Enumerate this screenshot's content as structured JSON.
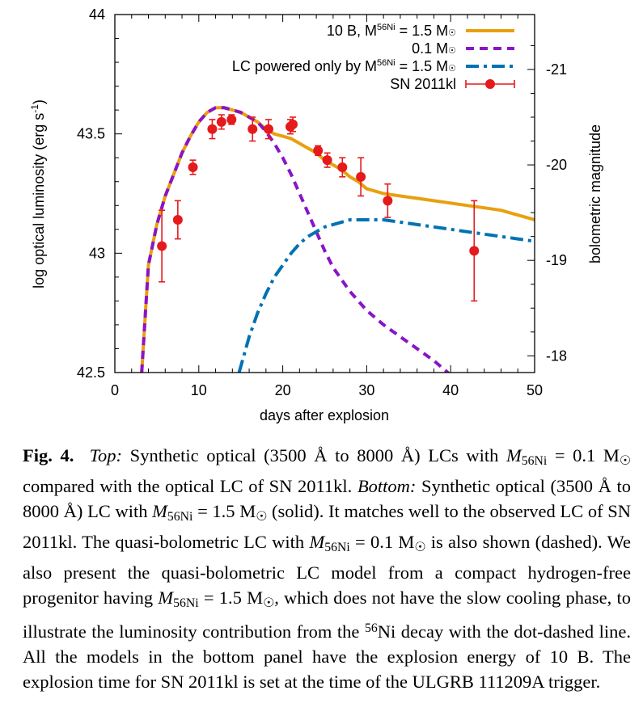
{
  "figure": {
    "chart_data": {
      "type": "line",
      "xlabel": "days after explosion",
      "ylabel": "log optical luminosity (erg s-1)",
      "ylabel_main": "log optical luminosity (erg s",
      "ylabel_sup": "-1",
      "ylabel_close": ")",
      "y2label": "bolometric magnitude",
      "xlim": [
        0,
        50
      ],
      "ylim": [
        42.5,
        44
      ],
      "x_ticks": [
        "0",
        "10",
        "20",
        "30",
        "40",
        "50"
      ],
      "y_ticks": [
        "42.5",
        "43",
        "43.5",
        "44"
      ],
      "y2_ticks": [
        "-18",
        "-19",
        "-20",
        "-21"
      ],
      "y2_tick_values": [
        -18,
        -19,
        -20,
        -21
      ],
      "mag_to_logL": {
        "offset": 35.37,
        "scale": -0.4
      },
      "legend_position": "top-right",
      "series": [
        {
          "name": "10 B, M56Ni = 1.5 M☉",
          "legend_prefix": "10 B, M",
          "legend_sup": "56",
          "legend_sub_text": "Ni",
          "legend_suffix": " = 1.5 M",
          "style": "solid",
          "color": "#e8a00f",
          "x": [
            3.2,
            4,
            5,
            6,
            7,
            8,
            9,
            10,
            11,
            12,
            13,
            14,
            15,
            16,
            17,
            18,
            19,
            20,
            21,
            22,
            23,
            24,
            25,
            26,
            27,
            28,
            29,
            30,
            32,
            34,
            36,
            38,
            40,
            42,
            44,
            46,
            48,
            50
          ],
          "y": [
            42.5,
            42.95,
            43.12,
            43.24,
            43.33,
            43.42,
            43.49,
            43.55,
            43.59,
            43.61,
            43.61,
            43.6,
            43.59,
            43.57,
            43.55,
            43.52,
            43.5,
            43.49,
            43.48,
            43.46,
            43.44,
            43.42,
            43.39,
            43.37,
            43.35,
            43.32,
            43.3,
            43.27,
            43.25,
            43.24,
            43.23,
            43.22,
            43.21,
            43.2,
            43.19,
            43.18,
            43.16,
            43.14
          ]
        },
        {
          "name": "0.1 M☉",
          "legend_prefix": "0.1 M",
          "style": "dashed",
          "color": "#8a14c8",
          "x": [
            3.2,
            4,
            5,
            6,
            7,
            8,
            9,
            10,
            11,
            12,
            13,
            14,
            15,
            16,
            17,
            18,
            19,
            20,
            21,
            22,
            23,
            24,
            25,
            26,
            28,
            30,
            32,
            34,
            36,
            38,
            40
          ],
          "y": [
            42.5,
            42.95,
            43.12,
            43.24,
            43.33,
            43.42,
            43.49,
            43.55,
            43.59,
            43.61,
            43.61,
            43.6,
            43.59,
            43.57,
            43.55,
            43.51,
            43.46,
            43.4,
            43.33,
            43.25,
            43.17,
            43.09,
            43.01,
            42.94,
            42.84,
            42.76,
            42.7,
            42.65,
            42.6,
            42.55,
            42.49
          ]
        },
        {
          "name": "LC powered only by M56Ni = 1.5 M☉",
          "legend_prefix": "LC powered only by M",
          "legend_sup": "56",
          "legend_sub_text": "Ni",
          "legend_suffix": " = 1.5 M",
          "style": "dashdot",
          "color": "#0072b2",
          "x": [
            14.8,
            16,
            17,
            18,
            19,
            20,
            21,
            22,
            23,
            24,
            25,
            26,
            27,
            28,
            30,
            32,
            34,
            36,
            38,
            40,
            42,
            44,
            46,
            48,
            50
          ],
          "y": [
            42.5,
            42.65,
            42.75,
            42.83,
            42.9,
            42.95,
            43.0,
            43.04,
            43.07,
            43.09,
            43.11,
            43.12,
            43.13,
            43.14,
            43.14,
            43.14,
            43.13,
            43.12,
            43.11,
            43.1,
            43.09,
            43.08,
            43.07,
            43.06,
            43.05
          ]
        },
        {
          "name": "SN 2011kl",
          "legend_prefix": "SN 2011kl",
          "style": "points",
          "color": "#e41a1c",
          "points": [
            {
              "x": 5.6,
              "y": 43.03,
              "err": 0.15
            },
            {
              "x": 7.5,
              "y": 43.14,
              "err": 0.08
            },
            {
              "x": 9.3,
              "y": 43.36,
              "err": 0.03
            },
            {
              "x": 11.6,
              "y": 43.52,
              "err": 0.04
            },
            {
              "x": 12.7,
              "y": 43.55,
              "err": 0.03
            },
            {
              "x": 13.9,
              "y": 43.56,
              "err": 0.02
            },
            {
              "x": 16.4,
              "y": 43.52,
              "err": 0.05
            },
            {
              "x": 18.3,
              "y": 43.52,
              "err": 0.04
            },
            {
              "x": 20.9,
              "y": 43.53,
              "err": 0.03
            },
            {
              "x": 21.2,
              "y": 43.54,
              "err": 0.03
            },
            {
              "x": 24.2,
              "y": 43.43,
              "err": 0.02
            },
            {
              "x": 25.3,
              "y": 43.39,
              "err": 0.03
            },
            {
              "x": 27.1,
              "y": 43.36,
              "err": 0.04
            },
            {
              "x": 29.3,
              "y": 43.32,
              "err": 0.08
            },
            {
              "x": 32.5,
              "y": 43.22,
              "err": 0.07
            },
            {
              "x": 42.8,
              "y": 43.01,
              "err": 0.21
            }
          ]
        }
      ]
    }
  },
  "caption": {
    "label": "Fig. 4.",
    "top_word": "Top:",
    "seg1": " Synthetic optical (3500 Å to 8000 Å) LCs with ",
    "m_italic": "M",
    "m_sub": "56Ni",
    "seg2": " = 0.1 M",
    "sun": "☉",
    "seg3": " compared with the optical LC of SN 2011kl. ",
    "bottom_word": "Bottom:",
    "seg4": " Synthetic optical (3500 Å to 8000 Å) LC with ",
    "seg5": " = 1.5 M",
    "seg6": " (solid). It matches well to the observed LC of SN 2011kl. The quasi-bolometric LC with ",
    "seg7": " = 0.1 M",
    "seg8": " is also shown (dashed). We also present the quasi-bolometric LC model from a compact hydrogen-free progenitor having ",
    "seg9": " = 1.5 M",
    "seg10": ", which does not have the slow cooling phase, to illustrate the luminosity contribution from the ",
    "ni_sup": "56",
    "seg11": "Ni decay with the dot-dashed line. All the models in the bottom panel have the explosion energy of 10 B. The explosion time for SN 2011kl is set at the time of the ULGRB 111209A trigger."
  }
}
